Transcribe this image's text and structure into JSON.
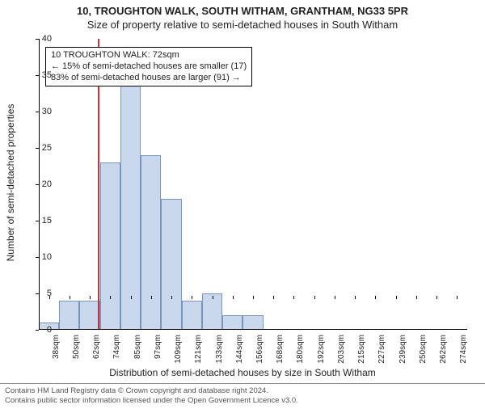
{
  "title_line1": "10, TROUGHTON WALK, SOUTH WITHAM, GRANTHAM, NG33 5PR",
  "title_line2": "Size of property relative to semi-detached houses in South Witham",
  "y_axis_title": "Number of semi-detached properties",
  "x_axis_title": "Distribution of semi-detached houses by size in South Witham",
  "footer_line1": "Contains HM Land Registry data © Crown copyright and database right 2024.",
  "footer_line2": "Contains public sector information licensed under the Open Government Licence v3.0.",
  "annotation": {
    "line1": "10 TROUGHTON WALK: 72sqm",
    "line2": "← 15% of semi-detached houses are smaller (17)",
    "line3": "83% of semi-detached houses are larger (91) →"
  },
  "chart": {
    "type": "histogram",
    "ylim": [
      0,
      40
    ],
    "yticks": [
      0,
      5,
      10,
      15,
      20,
      25,
      30,
      35,
      40
    ],
    "xticks": [
      "38sqm",
      "50sqm",
      "62sqm",
      "74sqm",
      "85sqm",
      "97sqm",
      "109sqm",
      "121sqm",
      "133sqm",
      "144sqm",
      "156sqm",
      "168sqm",
      "180sqm",
      "192sqm",
      "203sqm",
      "215sqm",
      "227sqm",
      "239sqm",
      "250sqm",
      "262sqm",
      "274sqm"
    ],
    "bar_values": [
      1,
      4,
      4,
      23,
      34,
      24,
      18,
      4,
      5,
      2,
      2,
      0,
      0,
      0,
      0,
      0,
      0,
      0,
      0,
      0,
      0
    ],
    "bar_fill": "#c9d8ec",
    "bar_border": "#7a94bd",
    "reference_line": {
      "index": 2.9,
      "color": "#d03030"
    },
    "background": "#ffffff",
    "axis_color": "#000000",
    "tick_fontsize": 10,
    "label_fontsize": 12,
    "title_fontsize": 13
  }
}
